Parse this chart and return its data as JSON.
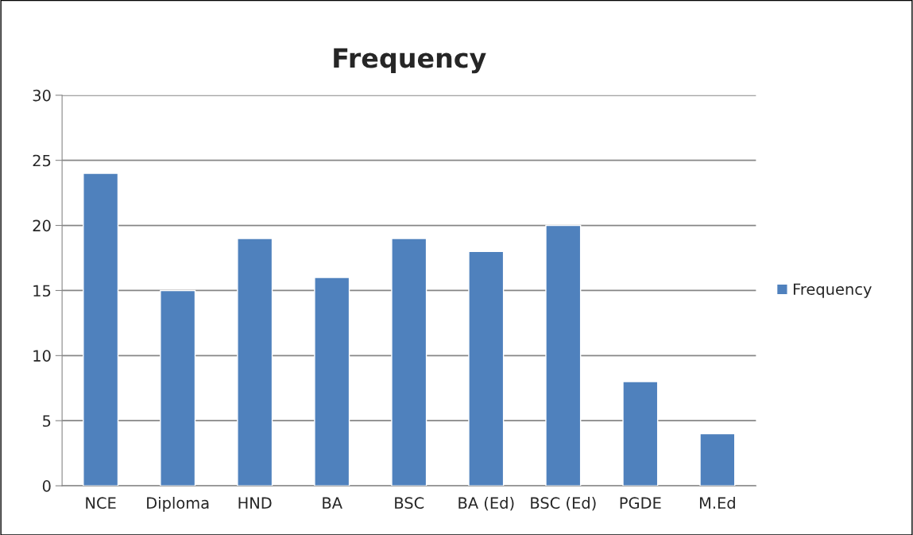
{
  "chart_data": {
    "type": "bar",
    "title": "Frequency",
    "categories": [
      "NCE",
      "Diploma",
      "HND",
      "BA",
      "BSC",
      "BA (Ed)",
      "BSC (Ed)",
      "PGDE",
      "M.Ed"
    ],
    "series": [
      {
        "name": "Frequency",
        "color": "#4f81bd",
        "values": [
          24,
          15,
          19,
          16,
          19,
          18,
          20,
          8,
          4
        ]
      }
    ],
    "ylim": [
      0,
      30
    ],
    "yticks": [
      0,
      5,
      10,
      15,
      20,
      25,
      30
    ],
    "grid": "y",
    "legend": "right"
  }
}
